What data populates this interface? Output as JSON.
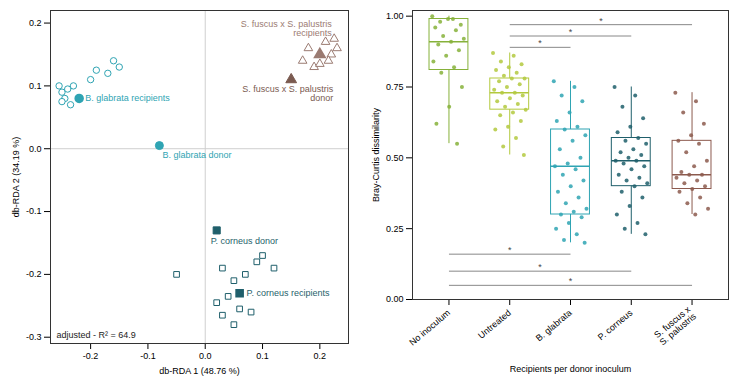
{
  "chart_data": [
    {
      "type": "scatter",
      "x_label": "db-RDA 1 (48.76 %)",
      "y_label": "db-RDA 2 (34.19 %)",
      "annotation": "adjusted - R² = 64.9",
      "xlim": [
        -0.27,
        0.25
      ],
      "ylim": [
        -0.31,
        0.22
      ],
      "xticks": [
        -0.2,
        -0.1,
        {
          "value": 0,
          "label": "0.0"
        },
        0.1,
        0.2
      ],
      "yticks": [
        -0.3,
        -0.2,
        -0.1,
        {
          "value": 0,
          "label": "0.0"
        },
        0.1,
        0.2
      ],
      "reference_lines": {
        "x": [
          0
        ],
        "y": [
          0
        ]
      },
      "series": [
        {
          "name": "B. glabrata recipients",
          "color": "#2fa4b3",
          "marker": "circle-open",
          "centroid": {
            "x": -0.22,
            "y": 0.08
          },
          "points": [
            {
              "x": -0.255,
              "y": 0.1
            },
            {
              "x": -0.25,
              "y": 0.09
            },
            {
              "x": -0.245,
              "y": 0.08
            },
            {
              "x": -0.24,
              "y": 0.095
            },
            {
              "x": -0.25,
              "y": 0.075
            },
            {
              "x": -0.235,
              "y": 0.07
            },
            {
              "x": -0.23,
              "y": 0.1
            },
            {
              "x": -0.2,
              "y": 0.11
            },
            {
              "x": -0.19,
              "y": 0.125
            },
            {
              "x": -0.17,
              "y": 0.12
            },
            {
              "x": -0.16,
              "y": 0.14
            },
            {
              "x": -0.15,
              "y": 0.13
            }
          ]
        },
        {
          "name": "B. glabrata donor",
          "color": "#2fa4b3",
          "marker": "circle",
          "points": [
            {
              "x": -0.08,
              "y": 0.005
            }
          ]
        },
        {
          "name": "P. corneus donor",
          "color": "#1f5f6b",
          "marker": "square",
          "points": [
            {
              "x": 0.02,
              "y": -0.13
            }
          ]
        },
        {
          "name": "P. corneus recipients",
          "color": "#1f5f6b",
          "marker": "square-open",
          "centroid": {
            "x": 0.06,
            "y": -0.23
          },
          "points": [
            {
              "x": 0.03,
              "y": -0.19
            },
            {
              "x": 0.05,
              "y": -0.21
            },
            {
              "x": 0.07,
              "y": -0.2
            },
            {
              "x": 0.09,
              "y": -0.18
            },
            {
              "x": 0.1,
              "y": -0.17
            },
            {
              "x": 0.04,
              "y": -0.235
            },
            {
              "x": 0.08,
              "y": -0.26
            },
            {
              "x": 0.06,
              "y": -0.255
            },
            {
              "x": 0.03,
              "y": -0.265
            },
            {
              "x": 0.12,
              "y": -0.19
            },
            {
              "x": -0.05,
              "y": -0.2
            },
            {
              "x": 0.05,
              "y": -0.28
            },
            {
              "x": 0.02,
              "y": -0.245
            }
          ]
        },
        {
          "name": "S. fuscus x S. palustris\nrecipients",
          "color": "#9b7b72",
          "marker": "triangle-open",
          "centroid": {
            "x": 0.2,
            "y": 0.15
          },
          "points": [
            {
              "x": 0.17,
              "y": 0.14
            },
            {
              "x": 0.18,
              "y": 0.16
            },
            {
              "x": 0.19,
              "y": 0.13
            },
            {
              "x": 0.21,
              "y": 0.17
            },
            {
              "x": 0.22,
              "y": 0.15
            },
            {
              "x": 0.23,
              "y": 0.16
            },
            {
              "x": 0.2,
              "y": 0.135
            },
            {
              "x": 0.215,
              "y": 0.14
            },
            {
              "x": 0.225,
              "y": 0.175
            }
          ]
        },
        {
          "name": "S. fuscus x S. palustris\ndonor",
          "color": "#7a5a50",
          "marker": "triangle",
          "points": [
            {
              "x": 0.15,
              "y": 0.11
            }
          ]
        }
      ]
    },
    {
      "type": "box",
      "x_label": "Recipients per donor inoculum",
      "y_label": "Bray-Curtis dissimilarity",
      "ylim": [
        0,
        1.02
      ],
      "yticks": [
        {
          "value": 0,
          "label": "0.00"
        },
        0.25,
        {
          "value": 0.5,
          "label": "0.50"
        },
        0.75,
        {
          "value": 1,
          "label": "1.00"
        }
      ],
      "categories": [
        "No inoculum",
        "Untreated",
        "B. glabrata",
        "P. corneus",
        "S. fuscus x\nS. palustris"
      ],
      "colors": [
        "#86b13a",
        "#b3c93e",
        "#2fa4b3",
        "#1f5f6b",
        "#8c5a4e"
      ],
      "boxes": [
        {
          "min": 0.55,
          "q1": 0.81,
          "median": 0.91,
          "q3": 0.99,
          "max": 1.0
        },
        {
          "min": 0.51,
          "q1": 0.67,
          "median": 0.73,
          "q3": 0.78,
          "max": 0.87
        },
        {
          "min": 0.2,
          "q1": 0.3,
          "median": 0.47,
          "q3": 0.6,
          "max": 0.77
        },
        {
          "min": 0.23,
          "q1": 0.4,
          "median": 0.49,
          "q3": 0.57,
          "max": 0.75
        },
        {
          "min": 0.3,
          "q1": 0.39,
          "median": 0.44,
          "q3": 0.56,
          "max": 0.73
        }
      ],
      "points": [
        [
          1.0,
          0.99,
          0.98,
          0.97,
          0.99,
          0.96,
          0.95,
          0.93,
          0.92,
          0.91,
          0.9,
          0.88,
          0.86,
          0.84,
          0.82,
          0.8,
          0.75,
          0.68,
          0.62,
          0.55
        ],
        [
          0.87,
          0.86,
          0.84,
          0.83,
          0.82,
          0.81,
          0.8,
          0.79,
          0.78,
          0.78,
          0.77,
          0.76,
          0.75,
          0.74,
          0.73,
          0.73,
          0.72,
          0.71,
          0.7,
          0.69,
          0.68,
          0.67,
          0.66,
          0.65,
          0.63,
          0.61,
          0.6,
          0.57,
          0.54,
          0.51
        ],
        [
          0.77,
          0.75,
          0.72,
          0.7,
          0.66,
          0.63,
          0.61,
          0.6,
          0.58,
          0.56,
          0.53,
          0.5,
          0.48,
          0.47,
          0.46,
          0.44,
          0.42,
          0.4,
          0.38,
          0.36,
          0.34,
          0.32,
          0.31,
          0.3,
          0.29,
          0.27,
          0.25,
          0.23,
          0.21,
          0.2
        ],
        [
          0.75,
          0.72,
          0.68,
          0.64,
          0.61,
          0.59,
          0.57,
          0.56,
          0.55,
          0.53,
          0.52,
          0.51,
          0.5,
          0.49,
          0.49,
          0.48,
          0.47,
          0.46,
          0.44,
          0.43,
          0.42,
          0.41,
          0.4,
          0.38,
          0.36,
          0.33,
          0.3,
          0.27,
          0.25,
          0.23
        ],
        [
          0.73,
          0.7,
          0.66,
          0.62,
          0.58,
          0.56,
          0.55,
          0.52,
          0.49,
          0.47,
          0.45,
          0.44,
          0.44,
          0.43,
          0.42,
          0.41,
          0.4,
          0.39,
          0.38,
          0.36,
          0.34,
          0.32,
          0.3
        ]
      ],
      "comparisons": [
        {
          "from": 1,
          "to": 2,
          "y": 0.89,
          "label": "*"
        },
        {
          "from": 1,
          "to": 3,
          "y": 0.93,
          "label": "*"
        },
        {
          "from": 1,
          "to": 4,
          "y": 0.97,
          "label": "*"
        },
        {
          "from": 0,
          "to": 2,
          "y": 0.16,
          "label": "*"
        },
        {
          "from": 0,
          "to": 3,
          "y": 0.1,
          "label": "*"
        },
        {
          "from": 0,
          "to": 4,
          "y": 0.05,
          "label": "*"
        }
      ]
    }
  ]
}
